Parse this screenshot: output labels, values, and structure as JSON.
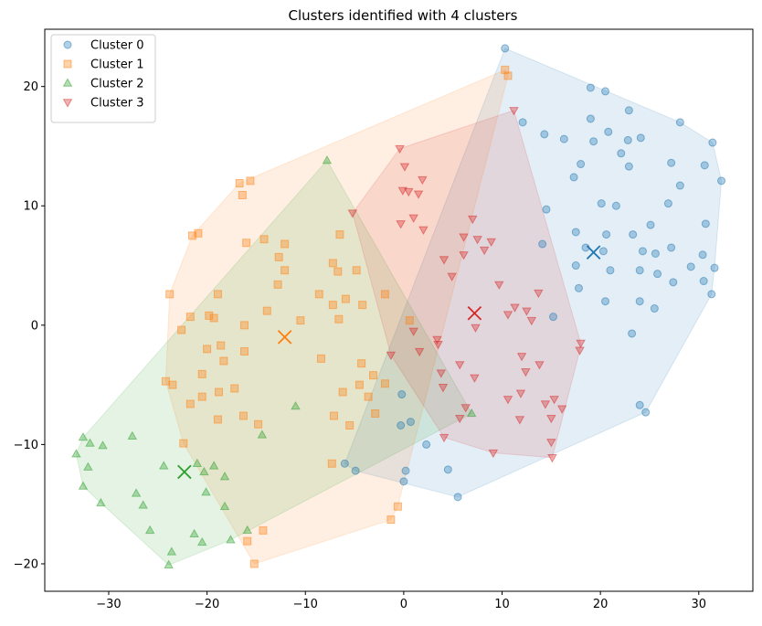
{
  "chart_data": {
    "type": "scatter",
    "title": "Clusters identified with 4 clusters",
    "xlabel": "",
    "ylabel": "",
    "xlim": [
      -36.5,
      35.5
    ],
    "ylim": [
      -22.3,
      24.8
    ],
    "x_ticks": [
      -30,
      -20,
      -10,
      0,
      10,
      20,
      30
    ],
    "y_ticks": [
      -20,
      -10,
      0,
      10,
      20
    ],
    "grid": false,
    "legend_position": "top-left",
    "series": [
      {
        "name": "Cluster 0",
        "marker": "circle",
        "color": "#1f77b4",
        "centroid": [
          19.3,
          6.1
        ],
        "points": [
          [
            10.3,
            23.2
          ],
          [
            19.0,
            19.9
          ],
          [
            20.5,
            19.6
          ],
          [
            12.1,
            17.0
          ],
          [
            19.0,
            17.3
          ],
          [
            22.9,
            18.0
          ],
          [
            28.1,
            17.0
          ],
          [
            14.3,
            16.0
          ],
          [
            16.3,
            15.6
          ],
          [
            19.3,
            15.4
          ],
          [
            20.8,
            16.2
          ],
          [
            22.8,
            15.5
          ],
          [
            24.1,
            15.7
          ],
          [
            31.4,
            15.3
          ],
          [
            22.1,
            14.4
          ],
          [
            27.2,
            13.6
          ],
          [
            18.0,
            13.5
          ],
          [
            22.9,
            13.3
          ],
          [
            30.6,
            13.4
          ],
          [
            17.3,
            12.4
          ],
          [
            32.3,
            12.1
          ],
          [
            28.1,
            11.7
          ],
          [
            14.5,
            9.7
          ],
          [
            20.1,
            10.2
          ],
          [
            21.6,
            10.0
          ],
          [
            26.9,
            10.2
          ],
          [
            25.1,
            8.4
          ],
          [
            30.7,
            8.5
          ],
          [
            17.5,
            7.8
          ],
          [
            20.6,
            7.6
          ],
          [
            23.3,
            7.6
          ],
          [
            14.1,
            6.8
          ],
          [
            24.3,
            6.2
          ],
          [
            25.6,
            6.0
          ],
          [
            27.2,
            6.5
          ],
          [
            30.4,
            5.9
          ],
          [
            20.3,
            6.2
          ],
          [
            17.5,
            5.0
          ],
          [
            21.0,
            4.6
          ],
          [
            24.0,
            4.6
          ],
          [
            25.8,
            4.3
          ],
          [
            29.2,
            4.9
          ],
          [
            31.6,
            4.8
          ],
          [
            18.5,
            6.5
          ],
          [
            30.5,
            3.7
          ],
          [
            27.4,
            3.6
          ],
          [
            17.8,
            3.1
          ],
          [
            31.3,
            2.6
          ],
          [
            20.5,
            2.0
          ],
          [
            24.0,
            2.0
          ],
          [
            25.5,
            1.4
          ],
          [
            15.2,
            0.7
          ],
          [
            23.2,
            -0.7
          ],
          [
            24.0,
            -6.7
          ],
          [
            24.6,
            -7.3
          ],
          [
            -0.2,
            -5.8
          ],
          [
            -0.3,
            -8.4
          ],
          [
            0.7,
            -8.1
          ],
          [
            2.3,
            -10.0
          ],
          [
            -6.0,
            -11.6
          ],
          [
            -4.9,
            -12.2
          ],
          [
            0.2,
            -12.2
          ],
          [
            4.5,
            -12.1
          ],
          [
            0.0,
            -13.1
          ],
          [
            5.5,
            -14.4
          ]
        ]
      },
      {
        "name": "Cluster 1",
        "marker": "square",
        "color": "#ff7f0e",
        "centroid": [
          -12.1,
          -1.0
        ],
        "points": [
          [
            10.3,
            21.4
          ],
          [
            10.6,
            20.9
          ],
          [
            -16.7,
            11.9
          ],
          [
            -15.6,
            12.1
          ],
          [
            -16.4,
            10.9
          ],
          [
            -20.9,
            7.7
          ],
          [
            -21.5,
            7.5
          ],
          [
            -16.0,
            6.9
          ],
          [
            -14.2,
            7.2
          ],
          [
            -12.1,
            6.8
          ],
          [
            -6.5,
            7.6
          ],
          [
            -12.7,
            5.7
          ],
          [
            -7.2,
            5.2
          ],
          [
            -12.1,
            4.6
          ],
          [
            -6.7,
            4.5
          ],
          [
            -4.8,
            4.6
          ],
          [
            -23.8,
            2.6
          ],
          [
            -18.9,
            2.6
          ],
          [
            -12.8,
            3.4
          ],
          [
            -8.6,
            2.6
          ],
          [
            -5.9,
            2.2
          ],
          [
            -4.2,
            1.7
          ],
          [
            -7.2,
            1.7
          ],
          [
            -1.9,
            2.6
          ],
          [
            -13.9,
            1.2
          ],
          [
            -21.7,
            0.7
          ],
          [
            -19.8,
            0.8
          ],
          [
            -19.3,
            0.6
          ],
          [
            -10.5,
            0.4
          ],
          [
            -6.6,
            0.5
          ],
          [
            -16.2,
            0.0
          ],
          [
            0.6,
            0.4
          ],
          [
            -22.6,
            -0.4
          ],
          [
            -18.6,
            -1.7
          ],
          [
            -20.0,
            -2.0
          ],
          [
            -16.2,
            -2.2
          ],
          [
            -18.3,
            -3.0
          ],
          [
            -8.4,
            -2.8
          ],
          [
            -4.3,
            -3.2
          ],
          [
            -24.2,
            -4.7
          ],
          [
            -23.5,
            -5.0
          ],
          [
            -20.5,
            -4.1
          ],
          [
            -17.2,
            -5.3
          ],
          [
            -18.8,
            -5.6
          ],
          [
            -6.2,
            -5.6
          ],
          [
            -3.1,
            -4.2
          ],
          [
            -4.5,
            -5.0
          ],
          [
            -1.9,
            -4.9
          ],
          [
            -20.5,
            -6.0
          ],
          [
            -21.7,
            -6.6
          ],
          [
            -3.6,
            -6.0
          ],
          [
            -16.3,
            -7.6
          ],
          [
            -18.9,
            -7.9
          ],
          [
            -7.1,
            -7.6
          ],
          [
            -2.9,
            -7.4
          ],
          [
            -14.8,
            -8.3
          ],
          [
            -5.5,
            -8.4
          ],
          [
            -22.4,
            -9.9
          ],
          [
            -7.3,
            -11.6
          ],
          [
            -0.6,
            -15.2
          ],
          [
            -1.3,
            -16.3
          ],
          [
            -14.3,
            -17.2
          ],
          [
            -15.9,
            -18.1
          ],
          [
            -15.2,
            -20.0
          ]
        ]
      },
      {
        "name": "Cluster 2",
        "marker": "triangle-up",
        "color": "#2ca02c",
        "centroid": [
          -22.3,
          -12.3
        ],
        "points": [
          [
            -7.8,
            13.8
          ],
          [
            -11.0,
            -6.8
          ],
          [
            -14.4,
            -9.2
          ],
          [
            6.9,
            -7.4
          ],
          [
            -27.6,
            -9.3
          ],
          [
            -32.6,
            -9.4
          ],
          [
            -31.9,
            -9.9
          ],
          [
            -30.6,
            -10.1
          ],
          [
            -33.3,
            -10.8
          ],
          [
            -24.4,
            -11.8
          ],
          [
            -32.1,
            -11.9
          ],
          [
            -21.0,
            -11.6
          ],
          [
            -19.3,
            -11.8
          ],
          [
            -20.3,
            -12.3
          ],
          [
            -18.2,
            -12.7
          ],
          [
            -32.6,
            -13.5
          ],
          [
            -27.2,
            -14.1
          ],
          [
            -20.1,
            -14.0
          ],
          [
            -30.8,
            -14.9
          ],
          [
            -26.5,
            -15.1
          ],
          [
            -18.2,
            -15.2
          ],
          [
            -25.8,
            -17.2
          ],
          [
            -21.3,
            -17.5
          ],
          [
            -15.9,
            -17.2
          ],
          [
            -20.5,
            -18.2
          ],
          [
            -17.6,
            -18.0
          ],
          [
            -23.6,
            -19.0
          ],
          [
            -23.9,
            -20.1
          ]
        ]
      },
      {
        "name": "Cluster 3",
        "marker": "triangle-down",
        "color": "#d62728",
        "centroid": [
          7.2,
          1.0
        ],
        "points": [
          [
            11.2,
            18.0
          ],
          [
            -0.4,
            14.8
          ],
          [
            0.1,
            13.3
          ],
          [
            1.9,
            12.2
          ],
          [
            -0.1,
            11.3
          ],
          [
            0.5,
            11.2
          ],
          [
            1.5,
            11.0
          ],
          [
            -5.2,
            9.4
          ],
          [
            7.0,
            8.9
          ],
          [
            -0.3,
            8.5
          ],
          [
            1.0,
            9.0
          ],
          [
            2.0,
            8.0
          ],
          [
            6.1,
            7.4
          ],
          [
            7.5,
            7.2
          ],
          [
            8.9,
            7.0
          ],
          [
            8.2,
            6.3
          ],
          [
            4.1,
            5.5
          ],
          [
            6.1,
            5.9
          ],
          [
            4.9,
            4.1
          ],
          [
            9.7,
            3.4
          ],
          [
            13.7,
            2.7
          ],
          [
            11.3,
            1.5
          ],
          [
            10.6,
            0.9
          ],
          [
            12.5,
            1.2
          ],
          [
            13.0,
            0.4
          ],
          [
            1.0,
            -0.5
          ],
          [
            18.0,
            -1.5
          ],
          [
            7.3,
            -0.2
          ],
          [
            3.4,
            -1.2
          ],
          [
            -1.3,
            -2.5
          ],
          [
            1.6,
            -2.2
          ],
          [
            3.5,
            -1.6
          ],
          [
            17.9,
            -2.1
          ],
          [
            12.0,
            -2.6
          ],
          [
            5.7,
            -3.3
          ],
          [
            12.4,
            -3.9
          ],
          [
            3.8,
            -4.0
          ],
          [
            13.8,
            -3.3
          ],
          [
            7.2,
            -4.4
          ],
          [
            10.6,
            -6.2
          ],
          [
            4.0,
            -5.2
          ],
          [
            11.9,
            -5.7
          ],
          [
            14.4,
            -6.6
          ],
          [
            15.3,
            -6.2
          ],
          [
            16.1,
            -7.0
          ],
          [
            6.3,
            -6.9
          ],
          [
            15.0,
            -7.8
          ],
          [
            11.8,
            -7.9
          ],
          [
            5.7,
            -7.8
          ],
          [
            4.1,
            -9.4
          ],
          [
            15.0,
            -9.8
          ],
          [
            9.1,
            -10.7
          ],
          [
            15.1,
            -11.1
          ]
        ]
      }
    ]
  }
}
